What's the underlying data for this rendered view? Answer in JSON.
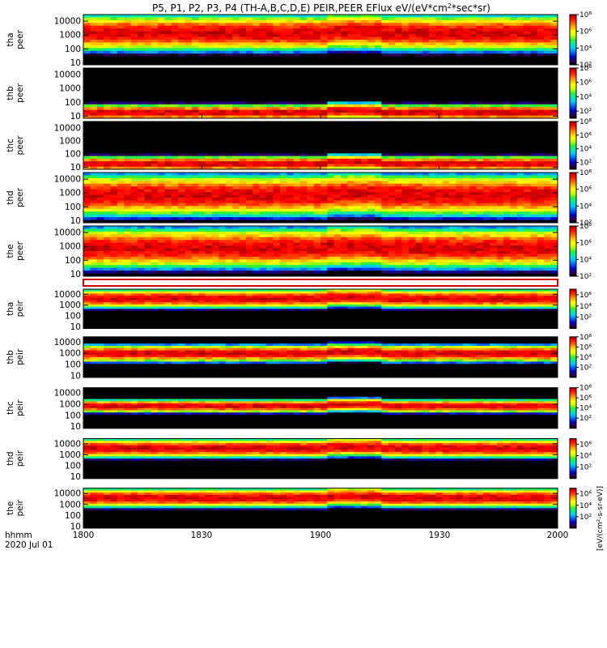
{
  "chart_data": {
    "type": "heatmap",
    "title": "P5, P1, P2, P3, P4 (TH-A,B,C,D,E) PEIR,PEER EFlux eV/(eV*cm²*sec*sr)",
    "title_parts": {
      "prefix": "P5, P1, P2, P3, P4 (TH-A,B,C,D,E) PEIR,PEER EFlux eV/(eV*cm",
      "superscript": "2",
      "suffix": "*sec*sr)"
    },
    "x_axis": {
      "ticks": [
        "1800",
        "1830",
        "1900",
        "1930",
        "2000"
      ],
      "tick_hours": [
        18.0,
        18.5,
        19.0,
        19.5,
        20.0
      ],
      "range_hours": [
        18.0,
        20.0
      ],
      "time_label": "hhmm",
      "date_label": "2020 Jul 01"
    },
    "y_axis": {
      "scale": "log",
      "unit": "eV",
      "range": [
        7,
        30000
      ],
      "tick_values": [
        10,
        100,
        1000,
        10000
      ],
      "tick_labels": [
        "10",
        "100",
        "1000",
        "10000"
      ]
    },
    "colorbar": {
      "scale": "log",
      "tick_labels": [
        "10²",
        "10⁴",
        "10⁶",
        "10⁸"
      ],
      "tick_exponents": [
        2,
        4,
        6,
        8
      ],
      "unit_label": "[eV/(cm²-s-sr-eV)]",
      "palette": [
        "#000000",
        "#30005a",
        "#0000c8",
        "#0060ff",
        "#00c8ff",
        "#00f0a0",
        "#30f030",
        "#c8ff00",
        "#ffff00",
        "#ffb400",
        "#ff5000",
        "#ff0000",
        "#a00000"
      ]
    },
    "panels": [
      {
        "probe": "tha",
        "instrument": "peer",
        "band_low_ev": 150,
        "band_high_ev": 12000,
        "cmin": 2,
        "cmax": 8
      },
      {
        "probe": "thb",
        "instrument": "peer",
        "band_low_ev": 8,
        "band_high_ev": 40,
        "cmin": 1,
        "cmax": 8
      },
      {
        "probe": "thc",
        "instrument": "peer",
        "band_low_ev": 8,
        "band_high_ev": 40,
        "cmin": 1,
        "cmax": 8
      },
      {
        "probe": "thd",
        "instrument": "peer",
        "band_low_ev": 50,
        "band_high_ev": 9000,
        "cmin": 2,
        "cmax": 8
      },
      {
        "probe": "the",
        "instrument": "peer",
        "band_low_ev": 60,
        "band_high_ev": 9000,
        "cmin": 2,
        "cmax": 8
      },
      {
        "probe": "tha",
        "instrument": "peir",
        "band_low_ev": 1000,
        "band_high_ev": 15000,
        "cmin": 0,
        "cmax": 7
      },
      {
        "probe": "thb",
        "instrument": "peir",
        "band_low_ev": 300,
        "band_high_ev": 3000,
        "cmin": 0,
        "cmax": 8
      },
      {
        "probe": "thc",
        "instrument": "peir",
        "band_low_ev": 300,
        "band_high_ev": 1500,
        "cmin": 0,
        "cmax": 8
      },
      {
        "probe": "thd",
        "instrument": "peir",
        "band_low_ev": 1000,
        "band_high_ev": 15000,
        "cmin": 0,
        "cmax": 7
      },
      {
        "probe": "the",
        "instrument": "peir",
        "band_low_ev": 1000,
        "band_high_ev": 15000,
        "cmin": 0,
        "cmax": 7
      }
    ]
  }
}
